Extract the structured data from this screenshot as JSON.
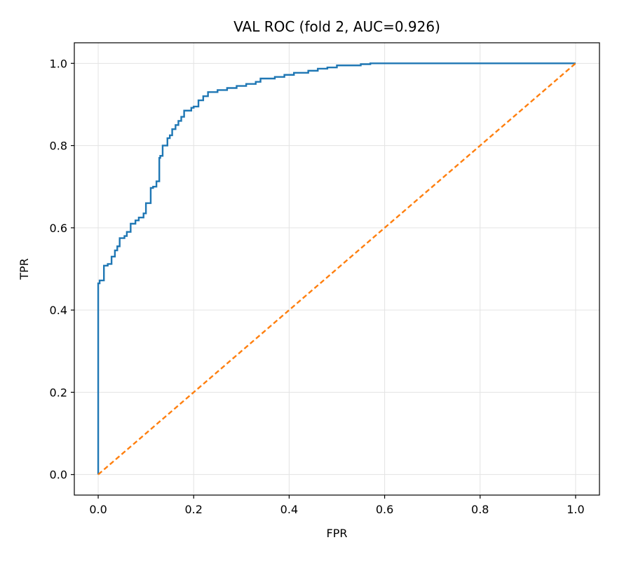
{
  "chart_data": {
    "type": "line",
    "title": "VAL ROC (fold 2, AUC=0.926)",
    "xlabel": "FPR",
    "ylabel": "TPR",
    "xlim": [
      -0.05,
      1.05
    ],
    "ylim": [
      -0.05,
      1.05
    ],
    "xticks": [
      0.0,
      0.2,
      0.4,
      0.6,
      0.8,
      1.0
    ],
    "yticks": [
      0.0,
      0.2,
      0.4,
      0.6,
      0.8,
      1.0
    ],
    "xtick_labels": [
      "0.0",
      "0.2",
      "0.4",
      "0.6",
      "0.8",
      "1.0"
    ],
    "ytick_labels": [
      "0.0",
      "0.2",
      "0.4",
      "0.6",
      "0.8",
      "1.0"
    ],
    "grid": true,
    "series": [
      {
        "color": "#1f77b4",
        "style": "step",
        "x": [
          0.0,
          0.0,
          0.003,
          0.003,
          0.012,
          0.012,
          0.02,
          0.02,
          0.028,
          0.028,
          0.035,
          0.035,
          0.04,
          0.04,
          0.045,
          0.045,
          0.055,
          0.055,
          0.06,
          0.06,
          0.068,
          0.068,
          0.078,
          0.078,
          0.085,
          0.085,
          0.095,
          0.095,
          0.1,
          0.1,
          0.11,
          0.11,
          0.115,
          0.115,
          0.122,
          0.122,
          0.128,
          0.128,
          0.13,
          0.13,
          0.135,
          0.135,
          0.145,
          0.145,
          0.15,
          0.15,
          0.155,
          0.155,
          0.162,
          0.162,
          0.168,
          0.168,
          0.174,
          0.174,
          0.18,
          0.18,
          0.195,
          0.195,
          0.2,
          0.2,
          0.21,
          0.21,
          0.22,
          0.22,
          0.23,
          0.23,
          0.25,
          0.25,
          0.27,
          0.27,
          0.29,
          0.29,
          0.31,
          0.31,
          0.33,
          0.33,
          0.34,
          0.34,
          0.37,
          0.37,
          0.39,
          0.39,
          0.41,
          0.41,
          0.44,
          0.44,
          0.46,
          0.46,
          0.48,
          0.48,
          0.5,
          0.5,
          0.55,
          0.55,
          0.57,
          0.57,
          1.0
        ],
        "y": [
          0.0,
          0.465,
          0.465,
          0.472,
          0.472,
          0.508,
          0.508,
          0.512,
          0.512,
          0.53,
          0.53,
          0.545,
          0.545,
          0.555,
          0.555,
          0.575,
          0.575,
          0.58,
          0.58,
          0.59,
          0.59,
          0.61,
          0.61,
          0.618,
          0.618,
          0.625,
          0.625,
          0.635,
          0.635,
          0.66,
          0.66,
          0.697,
          0.697,
          0.7,
          0.7,
          0.713,
          0.713,
          0.77,
          0.77,
          0.775,
          0.775,
          0.8,
          0.8,
          0.818,
          0.818,
          0.825,
          0.825,
          0.84,
          0.84,
          0.85,
          0.85,
          0.86,
          0.86,
          0.87,
          0.87,
          0.885,
          0.885,
          0.892,
          0.892,
          0.895,
          0.895,
          0.91,
          0.91,
          0.92,
          0.92,
          0.93,
          0.93,
          0.935,
          0.935,
          0.94,
          0.94,
          0.945,
          0.945,
          0.95,
          0.95,
          0.955,
          0.955,
          0.963,
          0.963,
          0.967,
          0.967,
          0.972,
          0.972,
          0.977,
          0.977,
          0.982,
          0.982,
          0.987,
          0.987,
          0.99,
          0.99,
          0.995,
          0.995,
          0.998,
          0.998,
          1.0,
          1.0
        ]
      },
      {
        "color": "#ff7f0e",
        "style": "dashed",
        "x": [
          0.0,
          1.0
        ],
        "y": [
          0.0,
          1.0
        ]
      }
    ]
  }
}
